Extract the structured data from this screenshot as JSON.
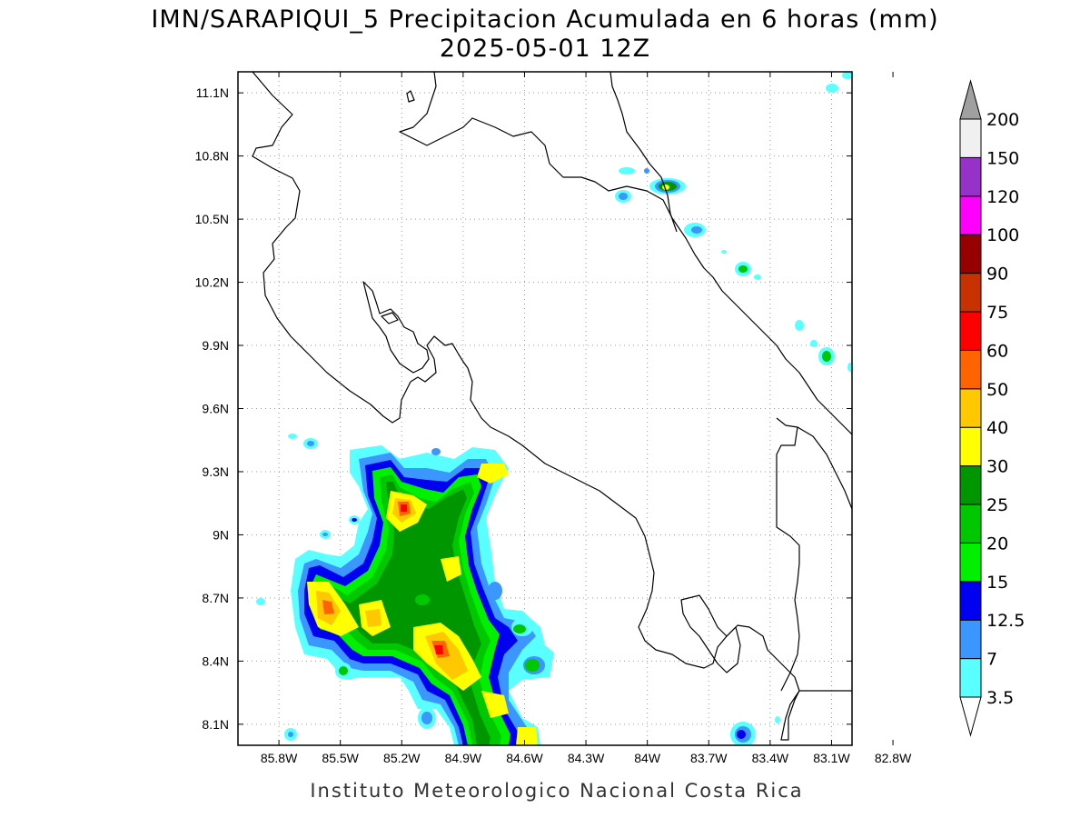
{
  "title": {
    "line1": "IMN/SARAPIQUI_5 Precipitacion Acumulada en 6 horas (mm)",
    "line2": "2025-05-01 12Z"
  },
  "credit": "Instituto Meteorologico Nacional Costa Rica",
  "map": {
    "lon_range": [
      -86.0,
      -83.0
    ],
    "lat_range": [
      8.0,
      11.2
    ],
    "lon_ticks": [
      {
        "value": -85.8,
        "label": "85.8W"
      },
      {
        "value": -85.5,
        "label": "85.5W"
      },
      {
        "value": -85.2,
        "label": "85.2W"
      },
      {
        "value": -84.9,
        "label": "84.9W"
      },
      {
        "value": -84.6,
        "label": "84.6W"
      },
      {
        "value": -84.3,
        "label": "84.3W"
      },
      {
        "value": -84.0,
        "label": "84W"
      },
      {
        "value": -83.7,
        "label": "83.7W"
      },
      {
        "value": -83.4,
        "label": "83.4W"
      },
      {
        "value": -83.1,
        "label": "83.1W"
      },
      {
        "value": -82.8,
        "label": "82.8W"
      }
    ],
    "lat_ticks": [
      {
        "value": 8.1,
        "label": "8.1N"
      },
      {
        "value": 8.4,
        "label": "8.4N"
      },
      {
        "value": 8.7,
        "label": "8.7N"
      },
      {
        "value": 9.0,
        "label": "9N"
      },
      {
        "value": 9.3,
        "label": "9.3N"
      },
      {
        "value": 9.6,
        "label": "9.6N"
      },
      {
        "value": 9.9,
        "label": "9.9N"
      },
      {
        "value": 10.2,
        "label": "10.2N"
      },
      {
        "value": 10.5,
        "label": "10.5N"
      },
      {
        "value": 10.8,
        "label": "10.8N"
      },
      {
        "value": 11.1,
        "label": "11.1N"
      }
    ],
    "grid": true
  },
  "colorbar": {
    "units": "mm",
    "levels": [
      "3.5",
      "7",
      "12.5",
      "15",
      "20",
      "25",
      "30",
      "40",
      "50",
      "60",
      "75",
      "90",
      "100",
      "120",
      "150",
      "200"
    ],
    "colors": [
      "#5affff",
      "#3c96ff",
      "#0000f0",
      "#00f000",
      "#00c800",
      "#009600",
      "#ffff00",
      "#ffc800",
      "#ff6400",
      "#ff0000",
      "#c83200",
      "#960000",
      "#ff00ff",
      "#9632c8",
      "#f0f0f0",
      "#a0a0a0"
    ],
    "extend": "both"
  }
}
